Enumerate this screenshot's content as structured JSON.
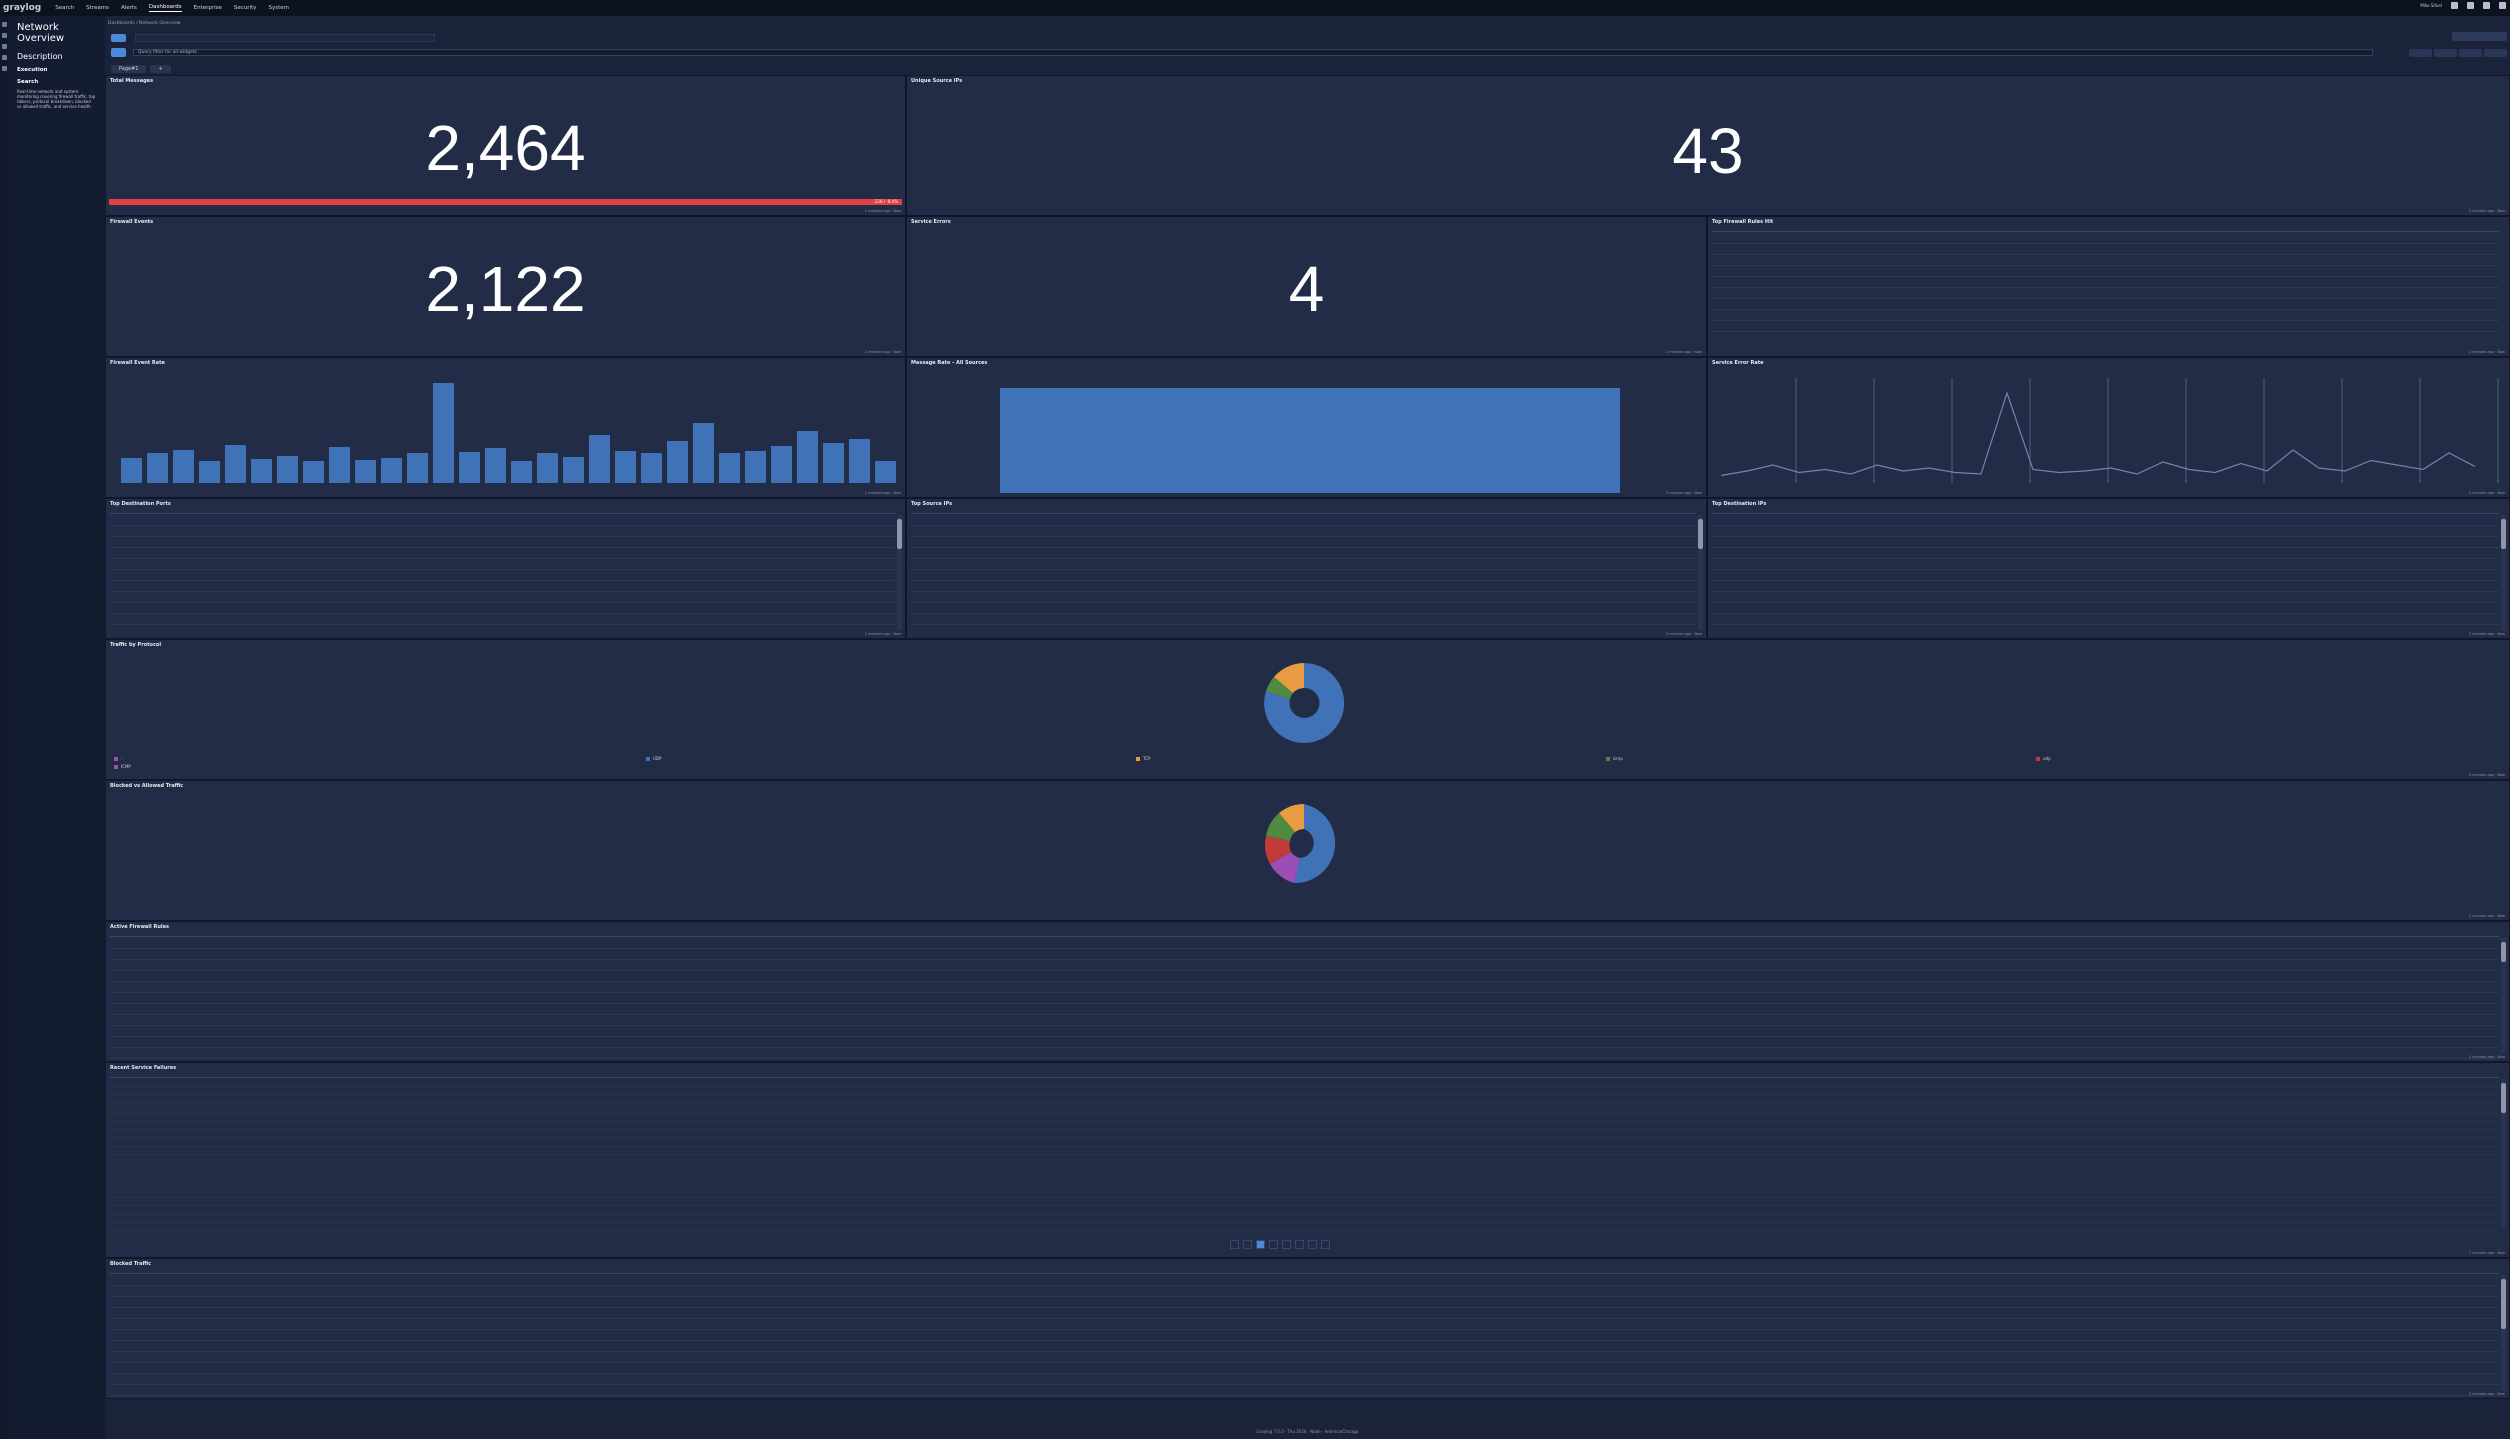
{
  "nav": {
    "logo": "graylog",
    "items": [
      "Search",
      "Streams",
      "Alerts",
      "Dashboards",
      "Enterprise",
      "Security",
      "System"
    ],
    "user": "Mike Sifuel"
  },
  "sidebar": {
    "title": "Network Overview",
    "description_heading": "Description",
    "execution_heading": "Execution",
    "search_heading": "Search",
    "description_text": "Real-time network and system monitoring covering firewall traffic, top talkers, protocol breakdown, blocked vs allowed traffic, and service health."
  },
  "breadcrumb": "Dashboards / Network Overview",
  "query": {
    "placeholder": "Query filter for all widgets"
  },
  "tabs": [
    "Page#1"
  ],
  "colors": {
    "accent": "#4a8ad8",
    "bar": "#3f72b6",
    "alert": "#e0403f",
    "pie_blue": "#3f72b6",
    "pie_orange": "#e99b42",
    "pie_green": "#4f8a3f",
    "pie_red": "#c23b3b",
    "pie_purple": "#9b4fb5"
  },
  "widgets": {
    "total_messages": {
      "title": "Total Messages",
      "value": "2,464",
      "trend": "-226 / -8.4%",
      "footer": "2 minutes ago · Now"
    },
    "unique_source": {
      "title": "Unique Source IPs",
      "value": "43",
      "footer": "2 minutes ago · Now"
    },
    "firewall_events": {
      "title": "Firewall Events",
      "value": "2,122",
      "footer": "2 minutes ago · Now"
    },
    "service_errors": {
      "title": "Service Errors",
      "value": "4",
      "footer": "2 minutes ago · Now"
    },
    "top_firewall_rules": {
      "title": "Top Firewall Rules Hit",
      "footer": "2 minutes ago · Now"
    },
    "firewall_rate": {
      "title": "Firewall Event Rate",
      "footer": "2 minutes ago · Now"
    },
    "message_rate": {
      "title": "Message Rate - All Sources",
      "footer": "2 minutes ago · Now"
    },
    "service_error_rate": {
      "title": "Service Error Rate",
      "footer": "2 minutes ago · Now"
    },
    "top_dest_ports": {
      "title": "Top Destination Ports",
      "footer": "2 minutes ago · Now"
    },
    "top_source_ips": {
      "title": "Top Source IPs",
      "footer": "2 minutes ago · Now"
    },
    "top_dest_ips": {
      "title": "Top Destination IPs",
      "footer": "2 minutes ago · Now"
    },
    "traffic_protocol": {
      "title": "Traffic by Protocol",
      "footer": "2 minutes ago · Now"
    },
    "blocked_allowed": {
      "title": "Blocked vs Allowed Traffic",
      "footer": "2 minutes ago · Now"
    },
    "active_rules": {
      "title": "Active Firewall Rules",
      "footer": "2 minutes ago · Now"
    },
    "recent_failures": {
      "title": "Recent Service Failures",
      "footer": "7 minutes ago · Now"
    },
    "blocked_traffic": {
      "title": "Blocked Traffic",
      "footer": "2 minutes ago · Now"
    }
  },
  "protocol_legend": [
    "-",
    "UDP",
    "TCP",
    "icmp",
    "udp",
    "ICMP"
  ],
  "footer_text": "Graylog 7.0.0 · Thu 2026 · Node · America/Chicago"
}
